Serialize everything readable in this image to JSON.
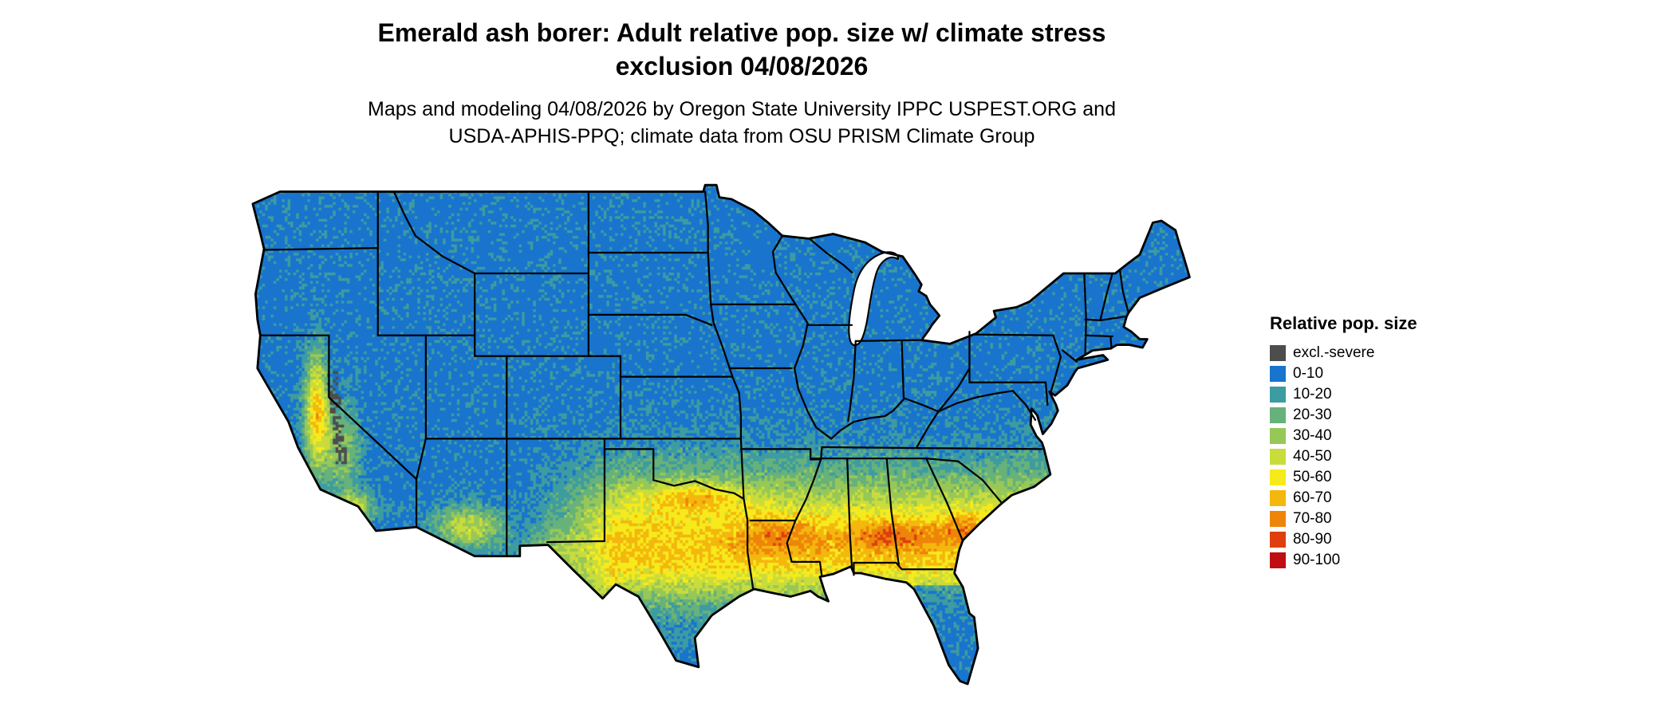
{
  "figure": {
    "kind": "raster-choropleth-map",
    "background": "#FFFFFF",
    "base_map_color": "#1874CD",
    "border_color": "#000000"
  },
  "title": {
    "line1": "Emerald ash borer: Adult relative pop. size w/ climate stress",
    "line2": "exclusion 04/08/2026"
  },
  "subtitle": {
    "line1": "Maps and modeling 04/08/2026 by Oregon State University IPPC USPEST.ORG and",
    "line2": "USDA-APHIS-PPQ; climate data from OSU PRISM Climate Group"
  },
  "legend": {
    "title": "Relative pop. size",
    "items": [
      {
        "label": "excl.-severe",
        "color": "#4D4D4D"
      },
      {
        "label": "0-10",
        "color": "#1874CD"
      },
      {
        "label": "10-20",
        "color": "#3D9BA2"
      },
      {
        "label": "20-30",
        "color": "#67B17A"
      },
      {
        "label": "30-40",
        "color": "#97C857"
      },
      {
        "label": "40-50",
        "color": "#C9DC3C"
      },
      {
        "label": "50-60",
        "color": "#F6EA1C"
      },
      {
        "label": "60-70",
        "color": "#F4B70D"
      },
      {
        "label": "70-80",
        "color": "#EE850A"
      },
      {
        "label": "80-90",
        "color": "#DE3F0D"
      },
      {
        "label": "90-100",
        "color": "#BF0D12"
      }
    ]
  },
  "map": {
    "region": "Contiguous United States",
    "value_name": "Relative pop. size",
    "pattern_summary": [
      "Northern and central states predominantly 0-10 (blue)",
      "Transition speckle of 10-30 across southern Missouri, Tennessee, the Carolinas and coastal Virginia",
      "Broad 30-60 (green to yellow) band across Texas, Oklahoma, the Gulf states and the Southeast",
      "Hotspots of 60-90 (orange to red) along the Texas-Oklahoma Red River, northern Louisiana, central Alabama-Georgia and coastal South Carolina",
      "Gulf coast, south Texas and the Florida peninsula fall back to 0-20",
      "California Central Valley and foothills 30-70 with dark excluded Sierra ridge; scattered 30-60 in Arizona and southern New Mexico"
    ]
  }
}
